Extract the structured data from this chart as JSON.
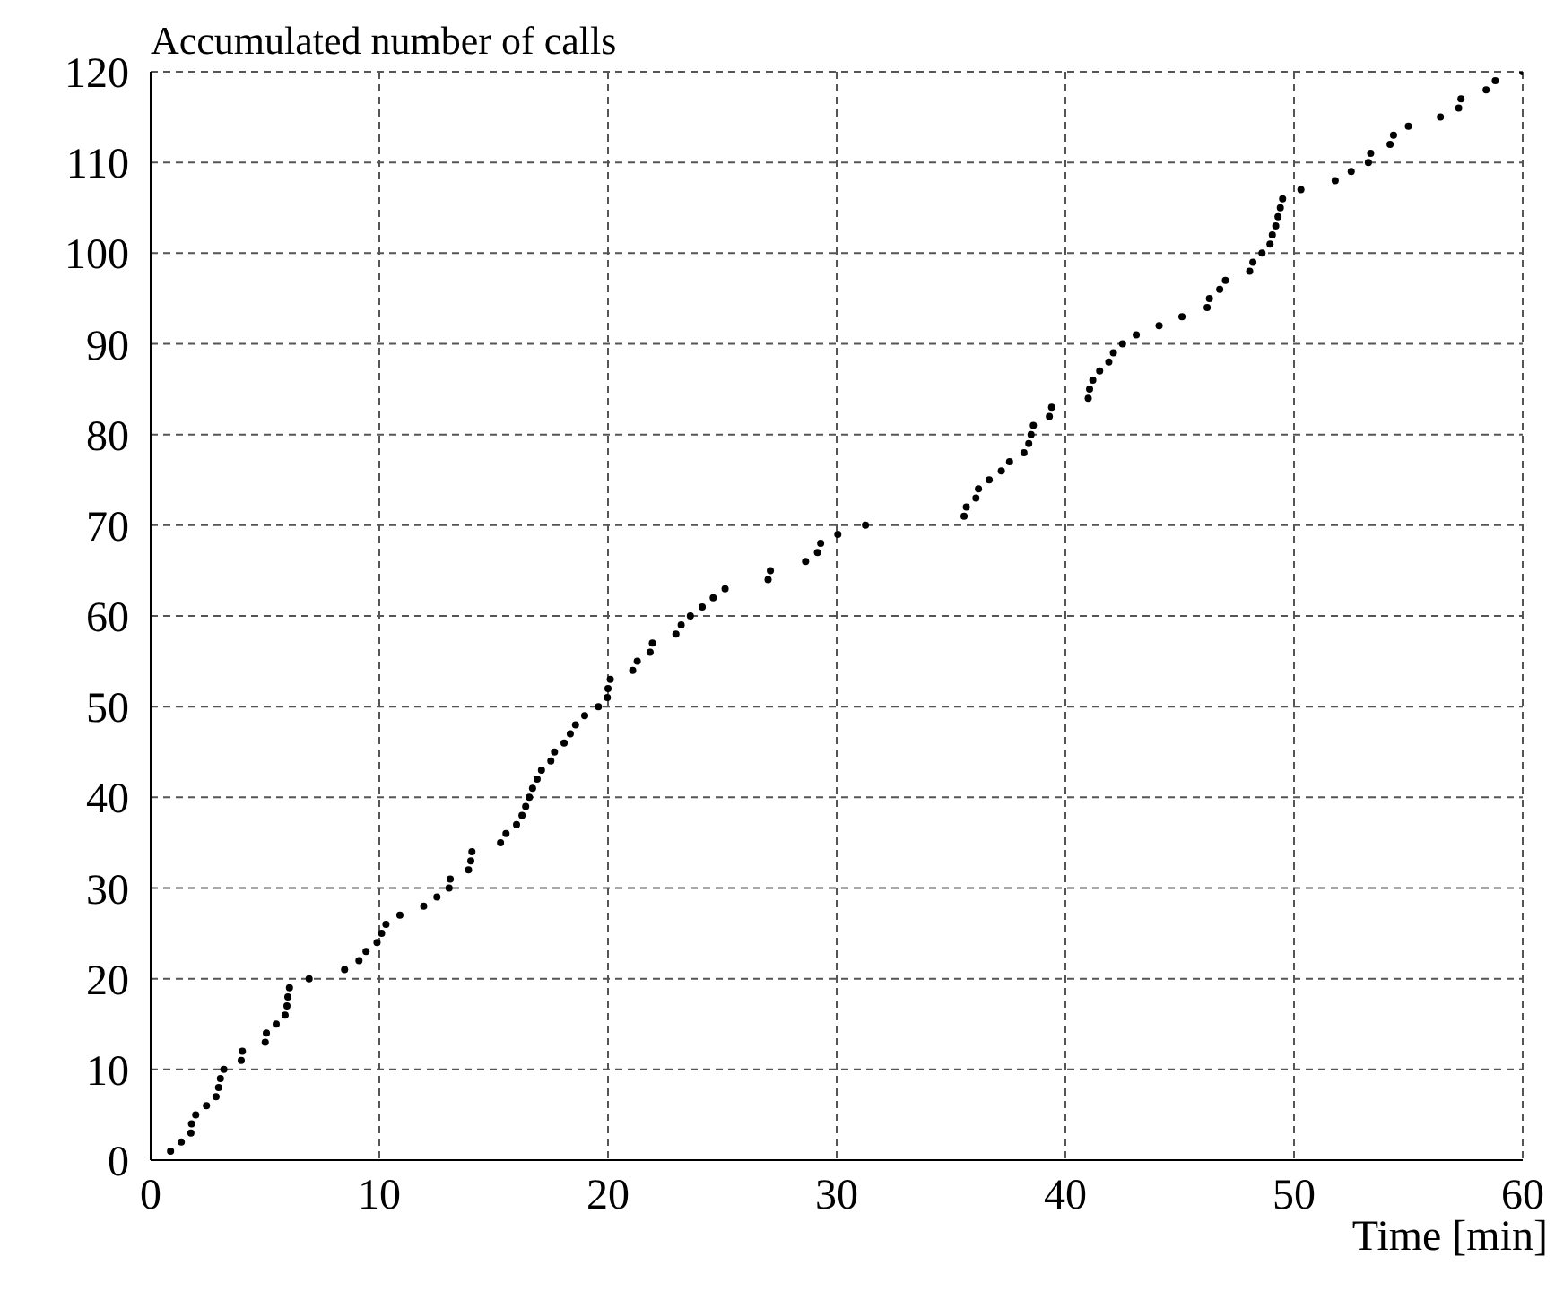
{
  "chart_data": {
    "type": "scatter",
    "ylabel": "Accumulated number of calls",
    "xlabel": "Time [min]",
    "xlim": [
      0,
      60
    ],
    "xticks": [
      0,
      10,
      20,
      30,
      40,
      50,
      60
    ],
    "ylim": [
      0,
      120
    ],
    "yticks": [
      0,
      10,
      20,
      30,
      40,
      50,
      60,
      70,
      80,
      90,
      100,
      110,
      120
    ],
    "grid": true,
    "marker": "circle",
    "legend": false,
    "series": [
      {
        "color": "#000000",
        "x": [
          0.87,
          1.34,
          1.76,
          1.79,
          1.97,
          2.44,
          2.86,
          2.97,
          3.05,
          3.2,
          3.96,
          4.01,
          5.01,
          5.06,
          5.49,
          5.88,
          5.96,
          6.0,
          6.07,
          6.93,
          8.48,
          9.11,
          9.42,
          9.9,
          10.1,
          10.29,
          10.9,
          11.94,
          12.52,
          13.05,
          13.1,
          13.9,
          14.0,
          14.05,
          15.3,
          15.54,
          16.0,
          16.24,
          16.4,
          16.56,
          16.7,
          16.9,
          17.09,
          17.5,
          17.66,
          18.08,
          18.35,
          18.58,
          18.98,
          19.58,
          19.97,
          20.0,
          20.1,
          21.08,
          21.28,
          21.84,
          21.94,
          22.97,
          23.2,
          23.6,
          24.12,
          24.6,
          25.12,
          27.0,
          27.1,
          28.64,
          29.16,
          29.3,
          30.05,
          31.26,
          35.57,
          35.67,
          36.09,
          36.2,
          36.67,
          37.2,
          37.56,
          38.19,
          38.4,
          38.5,
          38.6,
          39.3,
          39.4,
          41.0,
          41.06,
          41.2,
          41.5,
          41.9,
          42.1,
          42.5,
          43.1,
          44.1,
          45.1,
          46.2,
          46.3,
          46.75,
          47.0,
          48.06,
          48.2,
          48.6,
          48.95,
          49.05,
          49.2,
          49.3,
          49.4,
          49.5,
          50.3,
          51.8,
          52.5,
          53.25,
          53.35,
          54.2,
          54.35,
          55.0,
          56.4,
          57.2,
          57.3,
          58.4,
          58.8,
          60
        ],
        "values": [
          1,
          2,
          3,
          4,
          5,
          6,
          7,
          8,
          9,
          10,
          11,
          12,
          13,
          14,
          15,
          16,
          17,
          18,
          19,
          20,
          21,
          22,
          23,
          24,
          25,
          26,
          27,
          28,
          29,
          30,
          31,
          32,
          33,
          34,
          35,
          36,
          37,
          38,
          39,
          40,
          41,
          42,
          43,
          44,
          45,
          46,
          47,
          48,
          49,
          50,
          51,
          52,
          53,
          54,
          55,
          56,
          57,
          58,
          59,
          60,
          61,
          62,
          63,
          64,
          65,
          66,
          67,
          68,
          69,
          70,
          71,
          72,
          73,
          74,
          75,
          76,
          77,
          78,
          79,
          80,
          81,
          82,
          83,
          84,
          85,
          86,
          87,
          88,
          89,
          90,
          91,
          92,
          93,
          94,
          95,
          96,
          97,
          98,
          99,
          100,
          101,
          102,
          103,
          104,
          105,
          106,
          107,
          108,
          109,
          110,
          111,
          112,
          113,
          114,
          115,
          116,
          117,
          118,
          119,
          120
        ]
      }
    ]
  }
}
